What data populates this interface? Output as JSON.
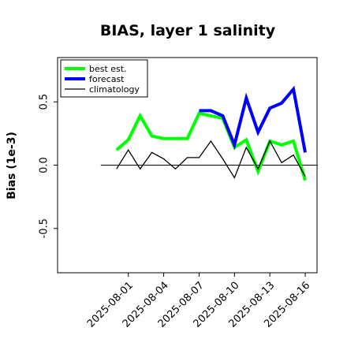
{
  "chart_data": {
    "type": "line",
    "title": "BIAS, layer 1 salinity",
    "xlabel": "",
    "ylabel": "Bias (1e-3)",
    "ylim": [
      -0.85,
      0.85
    ],
    "yticks": [
      -0.5,
      0.0,
      0.5
    ],
    "ytick_labels": [
      "-0.5",
      "0.0",
      "0.5"
    ],
    "x": [
      "2025-07-31",
      "2025-08-01",
      "2025-08-02",
      "2025-08-03",
      "2025-08-04",
      "2025-08-05",
      "2025-08-06",
      "2025-08-07",
      "2025-08-08",
      "2025-08-09",
      "2025-08-10",
      "2025-08-11",
      "2025-08-12",
      "2025-08-13",
      "2025-08-14",
      "2025-08-15",
      "2025-08-16"
    ],
    "xlim": [
      "2025-07-26",
      "2025-08-17"
    ],
    "xtick_labels": [
      "2025-08-01",
      "2025-08-04",
      "2025-08-07",
      "2025-08-10",
      "2025-08-13",
      "2025-08-16"
    ],
    "highlight_tick": "2025-08-07",
    "highlight_color": "#2e7d32",
    "zero_line": 0.0,
    "legend_position": "top-left",
    "series": [
      {
        "name": "best est.",
        "color": "#00ff00",
        "width": 4,
        "values": [
          0.12,
          0.2,
          0.39,
          0.23,
          0.21,
          0.21,
          0.21,
          0.41,
          0.39,
          0.37,
          0.14,
          0.2,
          -0.05,
          0.19,
          0.16,
          0.19,
          -0.12
        ]
      },
      {
        "name": "forecast",
        "color": "#0000ff",
        "width": 4,
        "values": [
          null,
          null,
          null,
          null,
          null,
          null,
          null,
          0.43,
          0.43,
          0.39,
          0.16,
          0.53,
          0.26,
          0.45,
          0.49,
          0.6,
          0.1
        ]
      },
      {
        "name": "climatology",
        "color": "#000000",
        "width": 1.3,
        "values": [
          -0.03,
          0.12,
          -0.03,
          0.1,
          0.05,
          -0.03,
          0.06,
          0.06,
          0.19,
          0.05,
          -0.1,
          0.14,
          -0.03,
          0.19,
          0.02,
          0.08,
          -0.09
        ]
      }
    ]
  }
}
